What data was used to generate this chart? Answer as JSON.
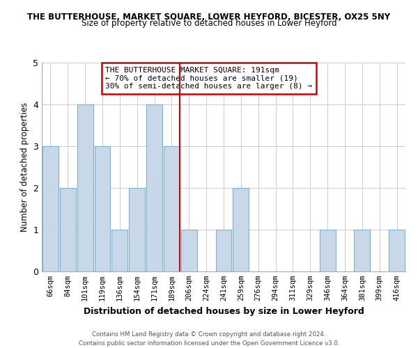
{
  "title": "THE BUTTERHOUSE, MARKET SQUARE, LOWER HEYFORD, BICESTER, OX25 5NY",
  "subtitle": "Size of property relative to detached houses in Lower Heyford",
  "xlabel": "Distribution of detached houses by size in Lower Heyford",
  "ylabel": "Number of detached properties",
  "bar_labels": [
    "66sqm",
    "84sqm",
    "101sqm",
    "119sqm",
    "136sqm",
    "154sqm",
    "171sqm",
    "189sqm",
    "206sqm",
    "224sqm",
    "241sqm",
    "259sqm",
    "276sqm",
    "294sqm",
    "311sqm",
    "329sqm",
    "346sqm",
    "364sqm",
    "381sqm",
    "399sqm",
    "416sqm"
  ],
  "bar_values": [
    3,
    2,
    4,
    3,
    1,
    2,
    4,
    3,
    1,
    0,
    1,
    2,
    0,
    0,
    0,
    0,
    1,
    0,
    1,
    0,
    1
  ],
  "bar_color": "#c8d8e8",
  "bar_edge_color": "#7bafd4",
  "property_line_index": 7,
  "property_line_color": "#cc0000",
  "annotation_title": "THE BUTTERHOUSE MARKET SQUARE: 191sqm",
  "annotation_line1": "← 70% of detached houses are smaller (19)",
  "annotation_line2": "30% of semi-detached houses are larger (8) →",
  "annotation_box_color": "#ffffff",
  "annotation_box_edge": "#cc0000",
  "ylim": [
    0,
    5
  ],
  "yticks": [
    0,
    1,
    2,
    3,
    4,
    5
  ],
  "footer_line1": "Contains HM Land Registry data © Crown copyright and database right 2024.",
  "footer_line2": "Contains public sector information licensed under the Open Government Licence v3.0.",
  "bg_color": "#ffffff",
  "grid_color": "#cccccc",
  "bar_width": 0.92
}
